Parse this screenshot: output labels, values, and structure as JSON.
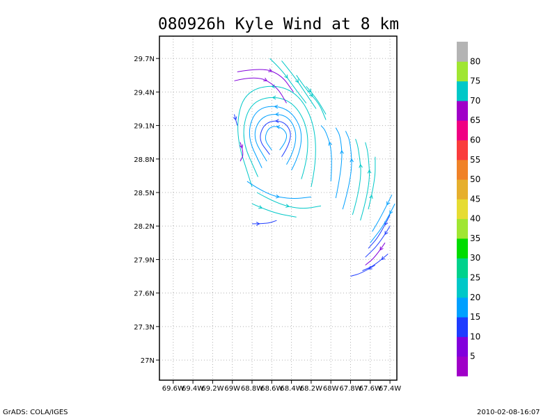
{
  "chart_data": {
    "type": "vector-streamline",
    "title": "080926h Kyle Wind at 8 km",
    "xlabel": "",
    "ylabel": "",
    "x_ticks": [
      "69.6W",
      "69.4W",
      "69.2W",
      "69W",
      "68.8W",
      "68.6W",
      "68.4W",
      "68.2W",
      "68W",
      "67.8W",
      "67.6W",
      "67.4W"
    ],
    "x_tick_values": [
      -69.6,
      -69.4,
      -69.2,
      -69.0,
      -68.8,
      -68.6,
      -68.4,
      -68.2,
      -68.0,
      -67.8,
      -67.6,
      -67.4
    ],
    "y_ticks": [
      "27N",
      "27.3N",
      "27.6N",
      "27.9N",
      "28.2N",
      "28.5N",
      "28.8N",
      "29.1N",
      "29.4N",
      "29.7N"
    ],
    "y_tick_values": [
      27.0,
      27.3,
      27.6,
      27.9,
      28.2,
      28.5,
      28.8,
      29.1,
      29.4,
      29.7
    ],
    "xlim": [
      -69.74,
      -67.33
    ],
    "ylim": [
      26.82,
      29.9
    ],
    "grid": true,
    "center": {
      "lon": -68.55,
      "lat": 28.98
    },
    "colorbar": {
      "labels": [
        "5",
        "10",
        "15",
        "20",
        "25",
        "30",
        "35",
        "40",
        "45",
        "50",
        "55",
        "60",
        "65",
        "70",
        "75",
        "80"
      ],
      "colors": [
        "#a000c8",
        "#8200dc",
        "#1e3cff",
        "#00a0ff",
        "#00c8c8",
        "#00d28c",
        "#00dc00",
        "#a0e632",
        "#e6dc32",
        "#e6af2d",
        "#f08228",
        "#fa3c3c",
        "#f00082",
        "#a000c8",
        "#00c8c8",
        "#a0e632",
        "#b4b4b4"
      ]
    },
    "streamlines": [
      {
        "speed": 15,
        "points": [
          [
            -68.52,
            28.88
          ],
          [
            -68.43,
            28.98
          ],
          [
            -68.48,
            29.08
          ],
          [
            -68.62,
            29.1
          ],
          [
            -68.68,
            28.98
          ],
          [
            -68.6,
            28.88
          ]
        ]
      },
      {
        "speed": 12,
        "points": [
          [
            -68.5,
            28.82
          ],
          [
            -68.38,
            28.98
          ],
          [
            -68.46,
            29.14
          ],
          [
            -68.66,
            29.14
          ],
          [
            -68.74,
            28.98
          ],
          [
            -68.62,
            28.84
          ]
        ]
      },
      {
        "speed": 15,
        "points": [
          [
            -68.45,
            28.75
          ],
          [
            -68.32,
            28.95
          ],
          [
            -68.42,
            29.2
          ],
          [
            -68.7,
            29.2
          ],
          [
            -68.8,
            29.0
          ],
          [
            -68.65,
            28.78
          ]
        ]
      },
      {
        "speed": 18,
        "points": [
          [
            -68.4,
            28.7
          ],
          [
            -68.25,
            28.95
          ],
          [
            -68.4,
            29.26
          ],
          [
            -68.74,
            29.28
          ],
          [
            -68.86,
            29.02
          ],
          [
            -68.7,
            28.72
          ]
        ]
      },
      {
        "speed": 20,
        "points": [
          [
            -68.3,
            28.62
          ],
          [
            -68.18,
            28.95
          ],
          [
            -68.38,
            29.35
          ],
          [
            -68.8,
            29.35
          ],
          [
            -68.92,
            29.0
          ],
          [
            -68.74,
            28.64
          ]
        ]
      },
      {
        "speed": 22,
        "points": [
          [
            -68.2,
            28.55
          ],
          [
            -68.1,
            28.95
          ],
          [
            -68.34,
            29.45
          ],
          [
            -68.86,
            29.45
          ],
          [
            -68.98,
            29.05
          ],
          [
            -68.8,
            28.55
          ]
        ]
      },
      {
        "speed": 8,
        "points": [
          [
            -68.98,
            29.5
          ],
          [
            -68.75,
            29.55
          ],
          [
            -68.55,
            29.45
          ],
          [
            -68.45,
            29.3
          ]
        ]
      },
      {
        "speed": 7,
        "points": [
          [
            -68.95,
            29.58
          ],
          [
            -68.7,
            29.62
          ],
          [
            -68.5,
            29.55
          ],
          [
            -68.38,
            29.4
          ]
        ]
      },
      {
        "speed": 22,
        "points": [
          [
            -68.62,
            29.7
          ],
          [
            -68.5,
            29.6
          ],
          [
            -68.38,
            29.45
          ],
          [
            -68.25,
            29.3
          ]
        ]
      },
      {
        "speed": 22,
        "points": [
          [
            -68.5,
            29.68
          ],
          [
            -68.38,
            29.55
          ],
          [
            -68.28,
            29.42
          ],
          [
            -68.15,
            29.25
          ]
        ]
      },
      {
        "speed": 24,
        "points": [
          [
            -68.35,
            29.55
          ],
          [
            -68.25,
            29.42
          ],
          [
            -68.12,
            29.3
          ],
          [
            -68.05,
            29.15
          ]
        ]
      },
      {
        "speed": 24,
        "points": [
          [
            -68.25,
            29.45
          ],
          [
            -68.15,
            29.35
          ],
          [
            -68.05,
            29.2
          ]
        ]
      },
      {
        "speed": 18,
        "points": [
          [
            -68.0,
            28.6
          ],
          [
            -67.98,
            28.85
          ],
          [
            -68.05,
            29.05
          ],
          [
            -68.1,
            29.1
          ]
        ]
      },
      {
        "speed": 16,
        "points": [
          [
            -67.95,
            28.45
          ],
          [
            -67.88,
            28.75
          ],
          [
            -67.9,
            29.0
          ],
          [
            -67.95,
            29.08
          ]
        ]
      },
      {
        "speed": 16,
        "points": [
          [
            -67.88,
            28.35
          ],
          [
            -67.78,
            28.65
          ],
          [
            -67.8,
            28.95
          ],
          [
            -67.85,
            29.05
          ]
        ]
      },
      {
        "speed": 20,
        "points": [
          [
            -67.78,
            28.3
          ],
          [
            -67.68,
            28.6
          ],
          [
            -67.72,
            28.9
          ],
          [
            -67.75,
            28.98
          ]
        ]
      },
      {
        "speed": 20,
        "points": [
          [
            -67.7,
            28.25
          ],
          [
            -67.6,
            28.55
          ],
          [
            -67.62,
            28.85
          ],
          [
            -67.65,
            28.95
          ]
        ]
      },
      {
        "speed": 22,
        "points": [
          [
            -67.62,
            28.35
          ],
          [
            -67.55,
            28.6
          ],
          [
            -67.55,
            28.82
          ]
        ]
      },
      {
        "speed": 20,
        "points": [
          [
            -68.75,
            28.5
          ],
          [
            -68.55,
            28.4
          ],
          [
            -68.3,
            28.35
          ],
          [
            -68.1,
            28.38
          ]
        ]
      },
      {
        "speed": 20,
        "points": [
          [
            -68.8,
            28.4
          ],
          [
            -68.6,
            28.32
          ],
          [
            -68.35,
            28.28
          ]
        ]
      },
      {
        "speed": 16,
        "points": [
          [
            -68.85,
            28.6
          ],
          [
            -68.65,
            28.48
          ],
          [
            -68.4,
            28.44
          ],
          [
            -68.2,
            28.46
          ]
        ]
      },
      {
        "speed": 10,
        "points": [
          [
            -68.8,
            28.22
          ],
          [
            -68.65,
            28.22
          ],
          [
            -68.55,
            28.25
          ]
        ]
      },
      {
        "speed": 8,
        "points": [
          [
            -68.92,
            28.95
          ],
          [
            -68.88,
            28.85
          ],
          [
            -68.92,
            28.78
          ]
        ]
      },
      {
        "speed": 10,
        "points": [
          [
            -68.98,
            29.2
          ],
          [
            -68.95,
            29.1
          ]
        ]
      },
      {
        "speed": 12,
        "points": [
          [
            -67.4,
            28.2
          ],
          [
            -67.5,
            28.05
          ],
          [
            -67.65,
            27.92
          ]
        ]
      },
      {
        "speed": 12,
        "points": [
          [
            -67.4,
            28.3
          ],
          [
            -67.5,
            28.12
          ],
          [
            -67.62,
            28.0
          ]
        ]
      },
      {
        "speed": 15,
        "points": [
          [
            -67.35,
            28.4
          ],
          [
            -67.45,
            28.22
          ],
          [
            -67.6,
            28.05
          ]
        ]
      },
      {
        "speed": 15,
        "points": [
          [
            -67.38,
            28.48
          ],
          [
            -67.48,
            28.3
          ],
          [
            -67.58,
            28.15
          ]
        ]
      },
      {
        "speed": 8,
        "points": [
          [
            -67.45,
            28.05
          ],
          [
            -67.55,
            27.92
          ],
          [
            -67.65,
            27.85
          ]
        ]
      },
      {
        "speed": 14,
        "points": [
          [
            -67.55,
            27.85
          ],
          [
            -67.68,
            27.78
          ],
          [
            -67.8,
            27.75
          ]
        ]
      },
      {
        "speed": 14,
        "points": [
          [
            -67.42,
            27.95
          ],
          [
            -67.55,
            27.85
          ],
          [
            -67.68,
            27.8
          ]
        ]
      }
    ]
  },
  "footer": {
    "left": "GrADS: COLA/IGES",
    "right": "2010-02-08-16:07"
  }
}
